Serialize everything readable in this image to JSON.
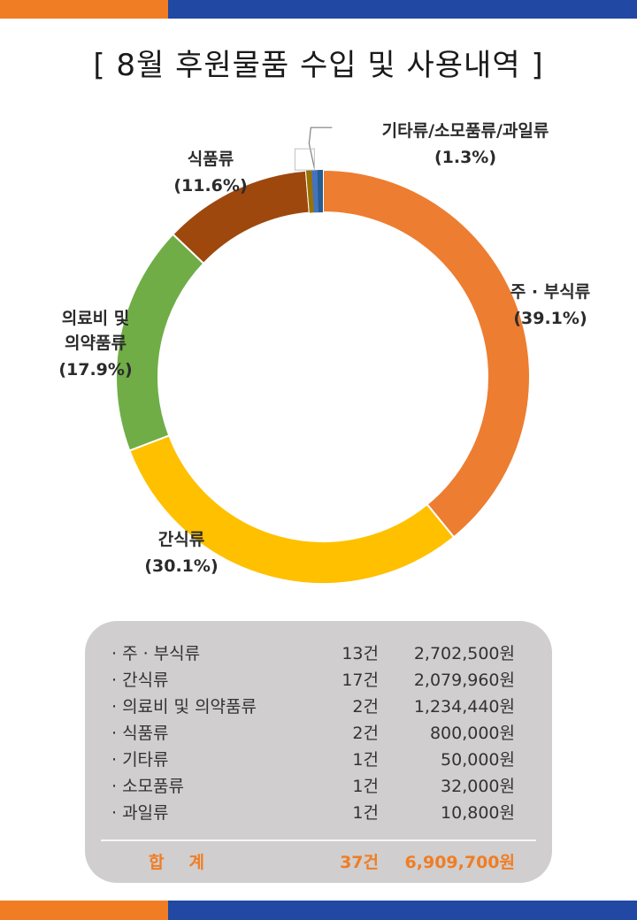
{
  "title": "[ 8월 후원물품 수입 및 사용내역 ]",
  "colors": {
    "orange": "#f07d24",
    "blue": "#2148a3"
  },
  "chart_data": {
    "type": "pie",
    "style": "donut",
    "slices": [
      {
        "label": "주 · 부식류",
        "percent_label": "(39.1%)",
        "value": 39.1,
        "color": "#ed7d31"
      },
      {
        "label": "간식류",
        "percent_label": "(30.1%)",
        "value": 30.1,
        "color": "#ffc000"
      },
      {
        "label": "의료비 및 의약품류",
        "percent_label": "(17.9%)",
        "value": 17.9,
        "color": "#70ad47"
      },
      {
        "label": "식품류",
        "percent_label": "(11.6%)",
        "value": 11.6,
        "color": "#9e480e"
      },
      {
        "label": "기타류/소모품류/과일류",
        "percent_label": "(1.3%)",
        "value": 1.3,
        "color": "#997300"
      }
    ]
  },
  "summary": {
    "rows": [
      {
        "name": "· 주 · 부식류",
        "count": "13건",
        "amount": "2,702,500원"
      },
      {
        "name": "· 간식류",
        "count": "17건",
        "amount": "2,079,960원"
      },
      {
        "name": "· 의료비 및 의약품류",
        "count": "2건",
        "amount": "1,234,440원"
      },
      {
        "name": "· 식품류",
        "count": "2건",
        "amount": "800,000원"
      },
      {
        "name": "· 기타류",
        "count": "1건",
        "amount": "50,000원"
      },
      {
        "name": "· 소모품류",
        "count": "1건",
        "amount": "32,000원"
      },
      {
        "name": "· 과일류",
        "count": "1건",
        "amount": "10,800원"
      }
    ],
    "total": {
      "label": "합계",
      "count": "37건",
      "amount": "6,909,700원"
    }
  }
}
